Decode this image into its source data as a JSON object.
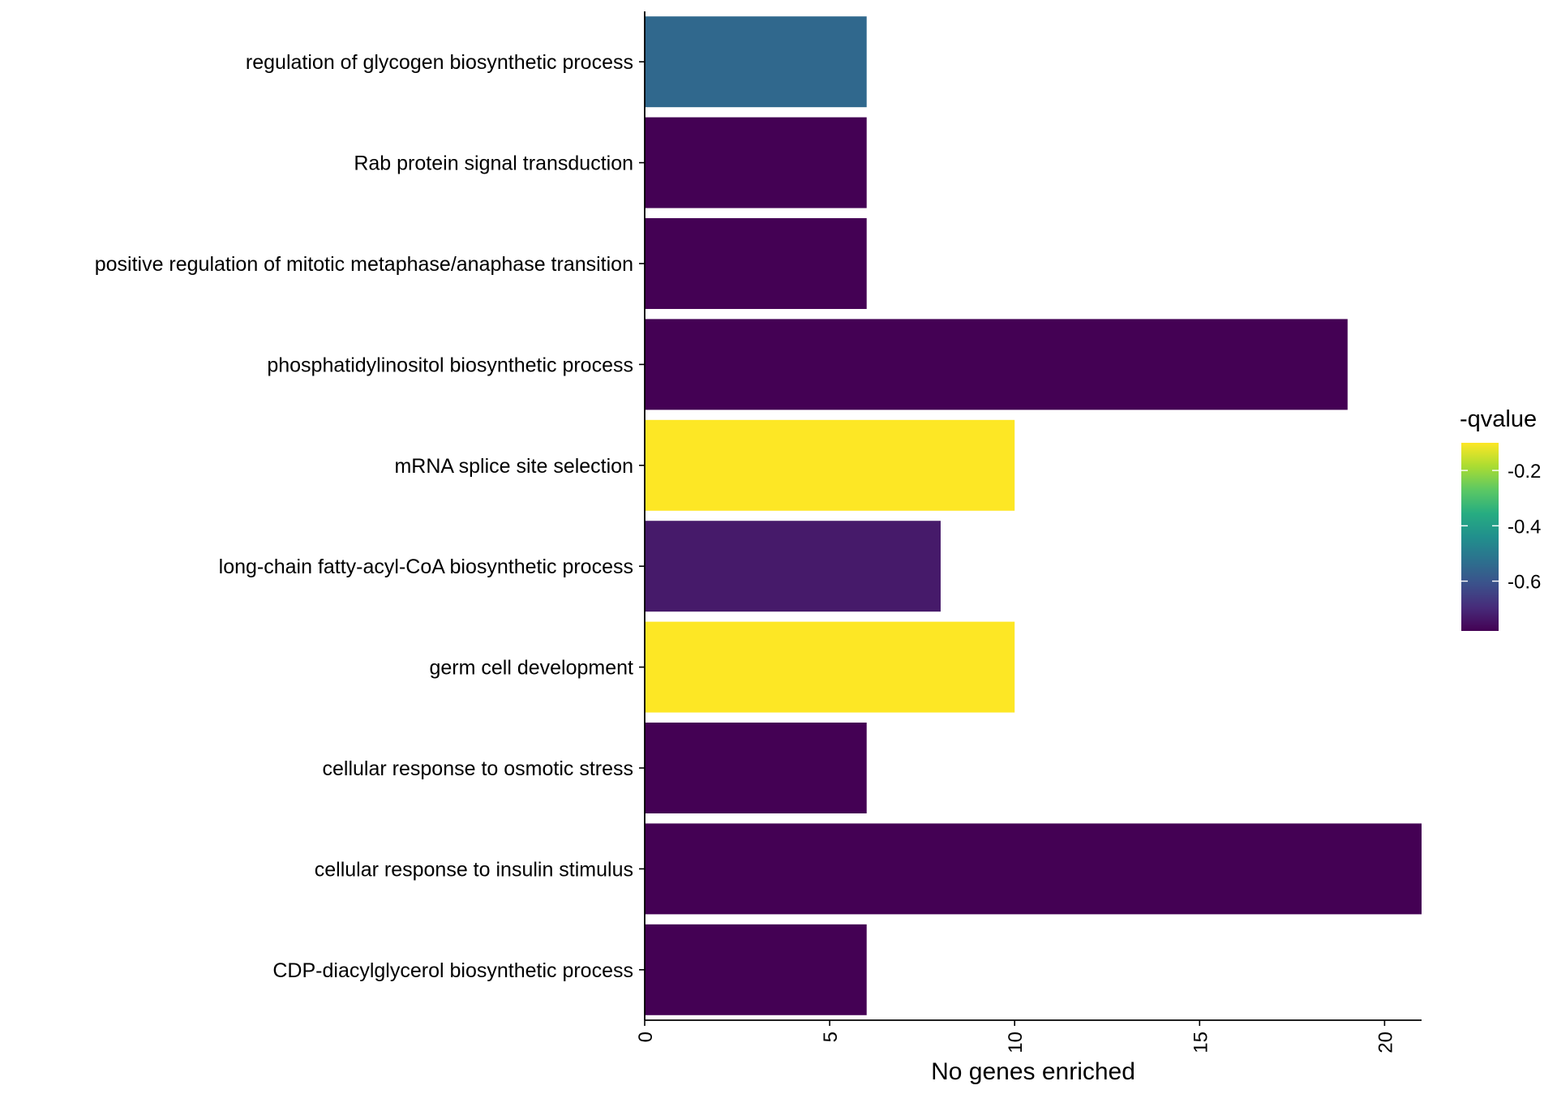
{
  "chart_data": {
    "type": "bar",
    "orientation": "horizontal",
    "categories": [
      "regulation of glycogen biosynthetic process",
      "Rab protein signal transduction",
      "positive regulation of mitotic metaphase/anaphase transition",
      "phosphatidylinositol biosynthetic process",
      "mRNA splice site selection",
      "long-chain fatty-acyl-CoA biosynthetic process",
      "germ cell development",
      "cellular response to osmotic stress",
      "cellular response to insulin stimulus",
      "CDP-diacylglycerol biosynthetic process"
    ],
    "values": [
      6,
      6,
      6,
      19,
      10,
      8,
      10,
      6,
      21,
      6
    ],
    "color_values": [
      -0.55,
      -0.78,
      -0.78,
      -0.78,
      -0.1,
      -0.73,
      -0.1,
      -0.78,
      -0.78,
      -0.78
    ],
    "xlabel": "No genes enriched",
    "ylabel": "",
    "xlim": [
      0,
      21
    ],
    "xticks": [
      0,
      5,
      10,
      15,
      20
    ],
    "grid": false,
    "legend": {
      "title": "-qvalue",
      "position": "right",
      "ticks": [
        "-0.2",
        "-0.4",
        "-0.6"
      ],
      "tick_values": [
        -0.2,
        -0.4,
        -0.6
      ],
      "range": [
        -0.78,
        -0.1
      ],
      "colormap": "viridis",
      "colors": [
        "#440154",
        "#472c7a",
        "#3b518b",
        "#2c718e",
        "#21908d",
        "#27ad81",
        "#5cc863",
        "#aadc32",
        "#fde725"
      ]
    }
  }
}
